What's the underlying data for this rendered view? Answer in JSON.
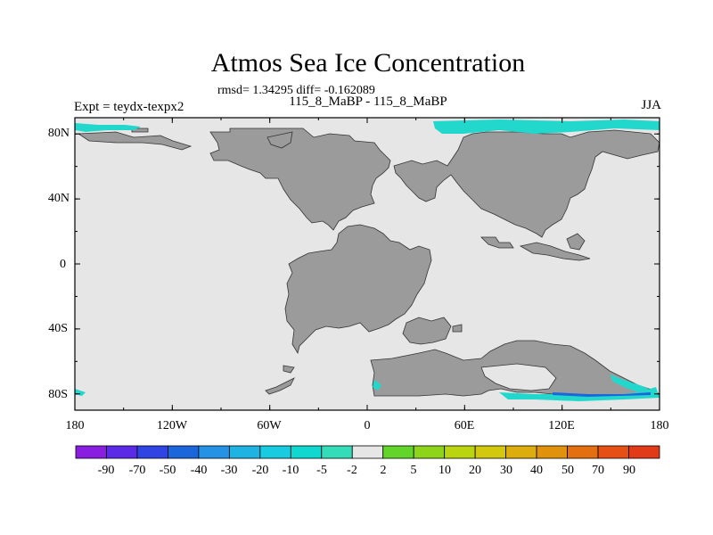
{
  "header": {
    "title": "Atmos Sea Ice Concentration",
    "stats": "rmsd= 1.34295 diff= -0.162089",
    "subtitle": "115_8_MaBP - 115_8_MaBP",
    "experiment": "Expt = teydx-texpx2",
    "season": "JJA"
  },
  "axes": {
    "y_ticks": [
      "80N",
      "40N",
      "0",
      "40S",
      "80S"
    ],
    "x_ticks": [
      "180",
      "120W",
      "60W",
      "0",
      "60E",
      "120E",
      "180"
    ],
    "lat_values": [
      80,
      40,
      0,
      -40,
      -80
    ],
    "lon_values": [
      -180,
      -120,
      -60,
      0,
      60,
      120,
      180
    ],
    "lat_range": [
      -90,
      90
    ],
    "lon_range": [
      -180,
      180
    ]
  },
  "colorbar": {
    "labels": [
      "-90",
      "-70",
      "-50",
      "-40",
      "-30",
      "-20",
      "-10",
      "-5",
      "-2",
      "2",
      "5",
      "10",
      "20",
      "30",
      "40",
      "50",
      "70",
      "90"
    ],
    "colors": [
      "#8a1ee0",
      "#5a2ae6",
      "#2f44e3",
      "#1c66dc",
      "#2592e6",
      "#1fb3e3",
      "#18cbe0",
      "#10d8d0",
      "#35dcb8",
      "#e6e6e6",
      "#62d42a",
      "#8ed41a",
      "#bad510",
      "#d2c80e",
      "#dcad0c",
      "#e0920c",
      "#e46f10",
      "#e65015",
      "#e03a19"
    ]
  },
  "map": {
    "ocean_color": "#e6e6e6",
    "land_color": "#9b9b9b",
    "ice_change_color": "#22d8cc"
  }
}
